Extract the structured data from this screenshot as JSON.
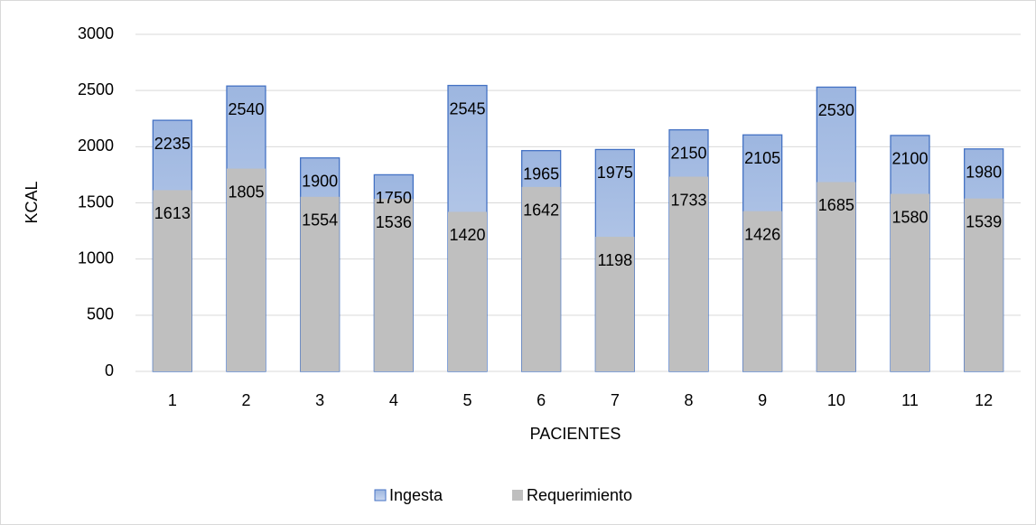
{
  "chart_data": {
    "type": "bar",
    "overlap": true,
    "categories": [
      "1",
      "2",
      "3",
      "4",
      "5",
      "6",
      "7",
      "8",
      "9",
      "10",
      "11",
      "12"
    ],
    "series": [
      {
        "name": "Ingesta",
        "color": "#b4c7e7",
        "edge": "#4472c4",
        "values": [
          2235,
          2540,
          1900,
          1750,
          2545,
          1965,
          1975,
          2150,
          2105,
          2530,
          2100,
          1980
        ]
      },
      {
        "name": "Requerimiento",
        "color": "#bfbfbf",
        "values": [
          1613,
          1805,
          1554,
          1536,
          1420,
          1642,
          1198,
          1733,
          1426,
          1685,
          1580,
          1539
        ]
      }
    ],
    "xlabel": "PACIENTES",
    "ylabel": "KCAL",
    "ylim": [
      0,
      3000
    ],
    "yticks": [
      0,
      500,
      1000,
      1500,
      2000,
      2500,
      3000
    ],
    "grid": true,
    "legend": "bottom"
  }
}
